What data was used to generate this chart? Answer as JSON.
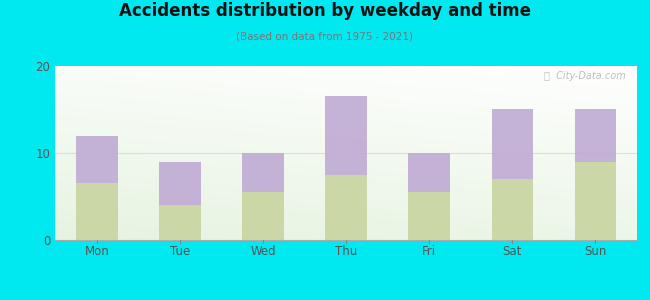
{
  "categories": [
    "Mon",
    "Tue",
    "Wed",
    "Thu",
    "Fri",
    "Sat",
    "Sun"
  ],
  "pm_values": [
    6.5,
    4.0,
    5.5,
    7.5,
    5.5,
    7.0,
    9.0
  ],
  "am_values": [
    5.5,
    5.0,
    4.5,
    9.0,
    4.5,
    8.0,
    6.0
  ],
  "am_color": "#c0aad4",
  "pm_color": "#c8d4a0",
  "title": "Accidents distribution by weekday and time",
  "subtitle": "(Based on data from 1975 - 2021)",
  "ylim": [
    0,
    20
  ],
  "yticks": [
    0,
    10,
    20
  ],
  "background_outer": "#00e8f0",
  "bar_width": 0.5,
  "watermark": "ⓘ  City-Data.com"
}
